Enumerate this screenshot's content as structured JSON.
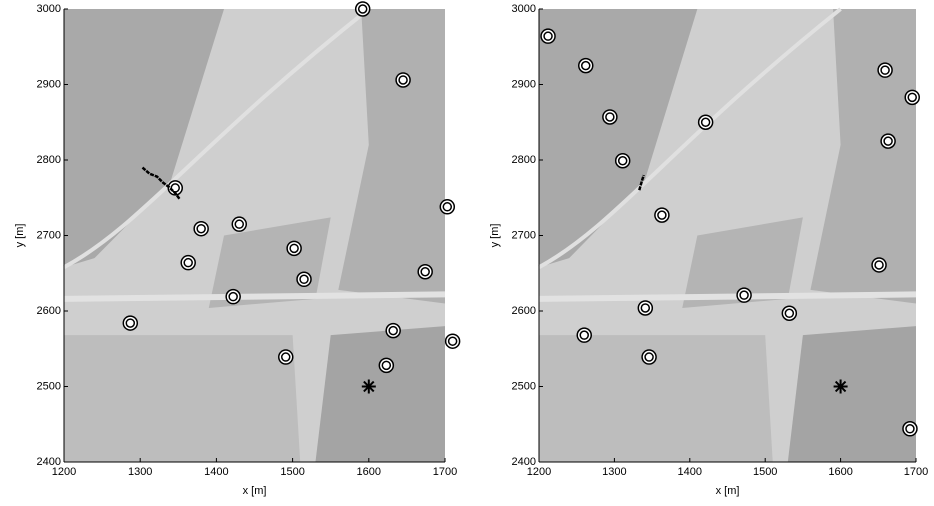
{
  "chart_data": [
    {
      "type": "scatter",
      "xlabel": "x [m]",
      "ylabel": "y [m]",
      "xlim": [
        1200,
        1700
      ],
      "ylim": [
        2400,
        3000
      ],
      "xticks": [
        1200,
        1300,
        1400,
        1500,
        1600,
        1700
      ],
      "yticks": [
        2400,
        2500,
        2600,
        2700,
        2800,
        2900,
        3000
      ],
      "series": [
        {
          "marker": "circle",
          "color": "#000000",
          "x": [
            1592,
            1645,
            1346,
            1703,
            1380,
            1430,
            1363,
            1502,
            1515,
            1674,
            1422,
            1287,
            1632,
            1710,
            1491,
            1623
          ],
          "values": [
            3000,
            2906,
            2763,
            2738,
            2709,
            2715,
            2664,
            2683,
            2642,
            2652,
            2619,
            2584,
            2574,
            2560,
            2539,
            2528
          ]
        },
        {
          "marker": "star",
          "color": "#000000",
          "x": [
            1600
          ],
          "values": [
            2500
          ]
        },
        {
          "marker": "track",
          "color": "#000000",
          "x": [
            1303,
            1312,
            1322,
            1330,
            1338,
            1346,
            1352
          ],
          "values": [
            2790,
            2782,
            2778,
            2770,
            2764,
            2756,
            2748
          ]
        }
      ]
    },
    {
      "type": "scatter",
      "xlabel": "x [m]",
      "ylabel": "y [m]",
      "xlim": [
        1200,
        1700
      ],
      "ylim": [
        2400,
        3000
      ],
      "xticks": [
        1200,
        1300,
        1400,
        1500,
        1600,
        1700
      ],
      "yticks": [
        2400,
        2500,
        2600,
        2700,
        2800,
        2900,
        3000
      ],
      "series": [
        {
          "marker": "circle",
          "color": "#000000",
          "x": [
            1212,
            1262,
            1294,
            1421,
            1311,
            1659,
            1695,
            1663,
            1363,
            1651,
            1472,
            1341,
            1532,
            1260,
            1346,
            1692
          ],
          "values": [
            2964,
            2925,
            2857,
            2850,
            2799,
            2919,
            2883,
            2825,
            2727,
            2661,
            2621,
            2604,
            2597,
            2568,
            2539,
            2444
          ]
        },
        {
          "marker": "star",
          "color": "#000000",
          "x": [
            1600
          ],
          "values": [
            2500
          ]
        },
        {
          "marker": "track",
          "color": "#000000",
          "x": [
            1333,
            1335,
            1337,
            1339
          ],
          "values": [
            2760,
            2767,
            2774,
            2780
          ]
        }
      ]
    }
  ]
}
